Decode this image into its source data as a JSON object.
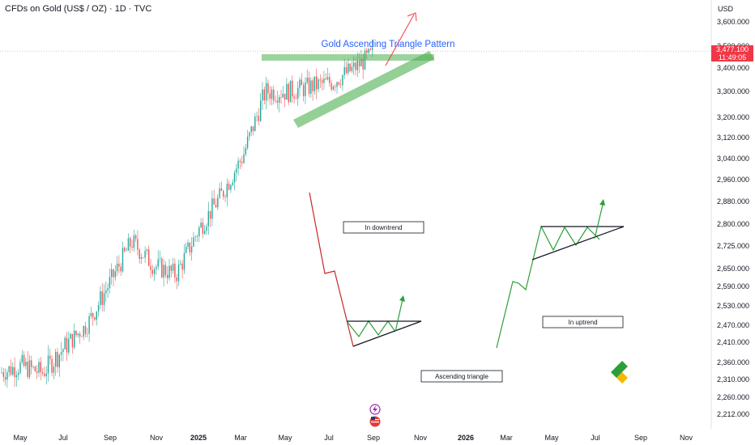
{
  "header": {
    "title": "CFDs on Gold (US$ / OZ) · 1D · TVC",
    "currency": "USD",
    "last_price": "3,477.100",
    "countdown": "11:49:05"
  },
  "chart_data": {
    "type": "candlestick",
    "title": "Gold Ascending Triangle Pattern",
    "symbol": "CFDs on Gold (US$ / OZ)",
    "timeframe": "1D",
    "source": "TVC",
    "y_axis_labels": [
      "3,600.000",
      "3,500.000",
      "3,400.000",
      "3,300.000",
      "3,200.000",
      "3,120.000",
      "3,040.000",
      "2,960.000",
      "2,880.000",
      "2,800.000",
      "2,725.000",
      "2,650.000",
      "2,590.000",
      "2,530.000",
      "2,470.000",
      "2,410.000",
      "2,360.000",
      "2,310.000",
      "2,260.000",
      "2,212.000"
    ],
    "x_axis_labels": [
      "May",
      "Jul",
      "Sep",
      "Nov",
      "2025",
      "Mar",
      "May",
      "Jul",
      "Sep",
      "Nov",
      "2026",
      "Mar",
      "May",
      "Jul",
      "Sep",
      "Nov"
    ],
    "price_path": [
      {
        "date": "2024-04",
        "price": 2330
      },
      {
        "date": "2024-05",
        "price": 2350
      },
      {
        "date": "2024-06",
        "price": 2330
      },
      {
        "date": "2024-07",
        "price": 2400
      },
      {
        "date": "2024-08",
        "price": 2470
      },
      {
        "date": "2024-09",
        "price": 2600
      },
      {
        "date": "2024-10",
        "price": 2740
      },
      {
        "date": "2024-11",
        "price": 2660
      },
      {
        "date": "2024-12",
        "price": 2630
      },
      {
        "date": "2025-01",
        "price": 2780
      },
      {
        "date": "2025-02",
        "price": 2900
      },
      {
        "date": "2025-03",
        "price": 3050
      },
      {
        "date": "2025-04",
        "price": 3300
      },
      {
        "date": "2025-05",
        "price": 3300
      },
      {
        "date": "2025-06",
        "price": 3320
      },
      {
        "date": "2025-07",
        "price": 3340
      },
      {
        "date": "2025-08",
        "price": 3400
      },
      {
        "date": "2025-09",
        "price": 3477
      }
    ],
    "annotations": {
      "downtrend_label": "In downtrend",
      "uptrend_label": "In uptrend",
      "ascending_label": "Ascending triangle"
    },
    "colors": {
      "up": "#26a69a",
      "down": "#ef5350",
      "pattern_green": "#4caf50",
      "arrow_red": "#f23645",
      "title_blue": "#2962ff"
    }
  }
}
